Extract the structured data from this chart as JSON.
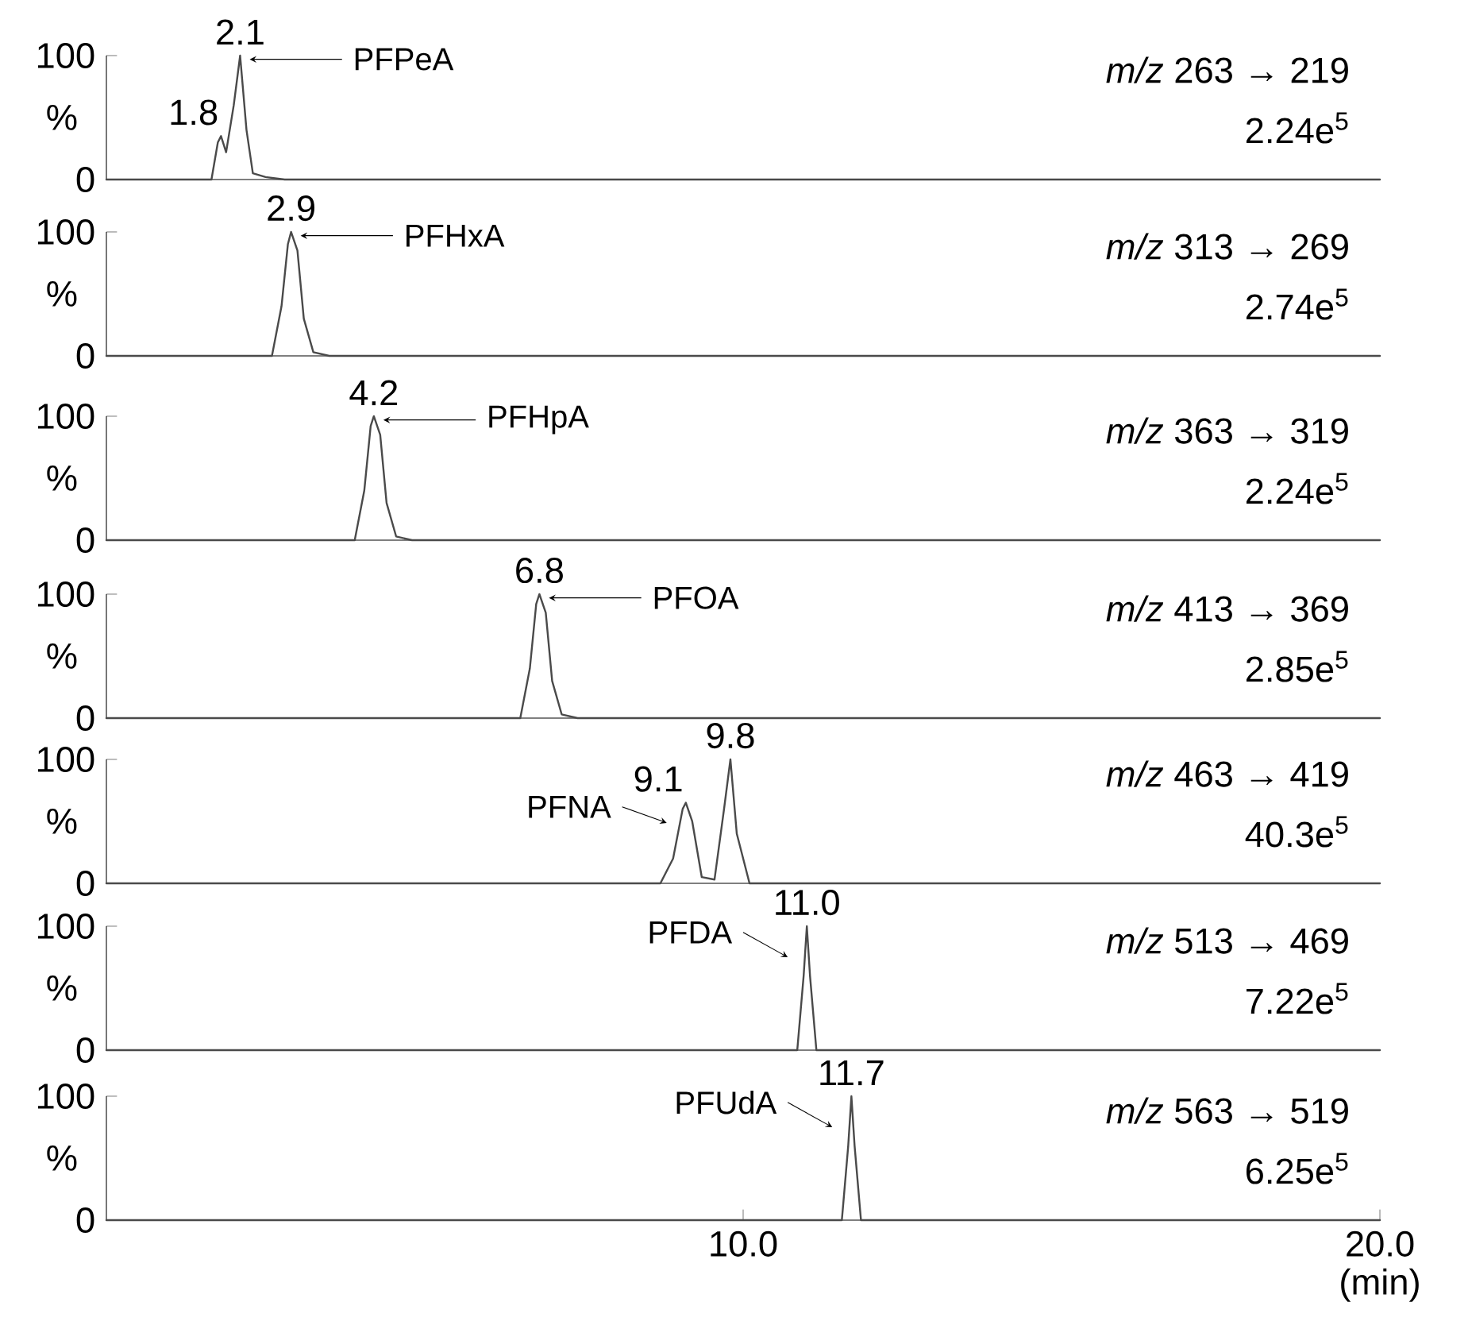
{
  "chart_data": [
    {
      "type": "line",
      "color": "#4a4a4a",
      "xlim": [
        0,
        20
      ],
      "ylim": [
        0,
        100
      ],
      "yticks": [
        0,
        100
      ],
      "ylabel": "%",
      "tick_labels": "y",
      "x": [
        0,
        1.65,
        1.75,
        1.8,
        1.88,
        2.0,
        2.1,
        2.2,
        2.3,
        2.5,
        2.8,
        20
      ],
      "values": [
        0,
        0,
        30,
        35,
        22,
        60,
        100,
        40,
        5,
        2,
        0,
        0
      ],
      "annotations": [
        "*m/z* 263 → 219",
        "2.24e$^{5}$",
        {
          "text": "1.8",
          "x": 1.8,
          "y": 35
        },
        {
          "text": "2.1",
          "x": 2.1,
          "y": 100
        },
        {
          "text": "PFPeA",
          "x": 2.1,
          "y": 100
        }
      ]
    },
    {
      "type": "line",
      "color": "#4a4a4a",
      "xlim": [
        0,
        20
      ],
      "ylim": [
        0,
        100
      ],
      "yticks": [
        0,
        100
      ],
      "ylabel": "%",
      "tick_labels": "y",
      "x": [
        0,
        2.6,
        2.75,
        2.85,
        2.9,
        3.0,
        3.1,
        3.25,
        3.5,
        20
      ],
      "values": [
        0,
        0,
        40,
        90,
        100,
        85,
        30,
        3,
        0,
        0
      ],
      "annotations": [
        "*m/z* 313 → 269",
        "2.74e$^{5}$",
        {
          "text": "2.9",
          "x": 2.9,
          "y": 100
        },
        {
          "text": "PFHxA",
          "x": 2.9,
          "y": 100
        }
      ]
    },
    {
      "type": "line",
      "color": "#4a4a4a",
      "xlim": [
        0,
        20
      ],
      "ylim": [
        0,
        100
      ],
      "yticks": [
        0,
        100
      ],
      "ylabel": "%",
      "tick_labels": "y",
      "x": [
        0,
        3.9,
        4.05,
        4.15,
        4.2,
        4.3,
        4.4,
        4.55,
        4.8,
        20
      ],
      "values": [
        0,
        0,
        40,
        92,
        100,
        85,
        30,
        3,
        0,
        0
      ],
      "annotations": [
        "*m/z* 363 → 319",
        "2.24e$^{5}$",
        {
          "text": "4.2",
          "x": 4.2,
          "y": 100
        },
        {
          "text": "PFHpA",
          "x": 4.2,
          "y": 100
        }
      ]
    },
    {
      "type": "line",
      "color": "#4a4a4a",
      "xlim": [
        0,
        20
      ],
      "ylim": [
        0,
        100
      ],
      "yticks": [
        0,
        100
      ],
      "ylabel": "%",
      "tick_labels": "y",
      "x": [
        0,
        6.5,
        6.65,
        6.75,
        6.8,
        6.9,
        7.0,
        7.15,
        7.4,
        20
      ],
      "values": [
        0,
        0,
        40,
        92,
        100,
        85,
        30,
        3,
        0,
        0
      ],
      "annotations": [
        "*m/z* 413 → 369",
        "2.85e$^{5}$",
        {
          "text": "6.8",
          "x": 6.8,
          "y": 100
        },
        {
          "text": "PFOA",
          "x": 6.8,
          "y": 100
        }
      ]
    },
    {
      "type": "line",
      "color": "#4a4a4a",
      "xlim": [
        0,
        20
      ],
      "ylim": [
        0,
        100
      ],
      "yticks": [
        0,
        100
      ],
      "ylabel": "%",
      "tick_labels": "y",
      "x": [
        0,
        8.7,
        8.9,
        9.05,
        9.1,
        9.2,
        9.35,
        9.55,
        9.7,
        9.8,
        9.9,
        10.1,
        20
      ],
      "values": [
        0,
        0,
        20,
        60,
        65,
        50,
        5,
        3,
        60,
        100,
        40,
        0,
        0
      ],
      "annotations": [
        "*m/z* 463 → 419",
        "40.3e$^{5}$",
        {
          "text": "9.1",
          "x": 9.1,
          "y": 65
        },
        {
          "text": "9.8",
          "x": 9.8,
          "y": 100
        },
        {
          "text": "PFNA",
          "x": 9.1,
          "y": 65
        }
      ]
    },
    {
      "type": "line",
      "color": "#4a4a4a",
      "xlim": [
        0,
        20
      ],
      "ylim": [
        0,
        100
      ],
      "yticks": [
        0,
        100
      ],
      "ylabel": "%",
      "tick_labels": "y",
      "x": [
        0,
        10.85,
        10.95,
        11.0,
        11.05,
        11.15,
        20
      ],
      "values": [
        0,
        0,
        60,
        100,
        60,
        0,
        0
      ],
      "annotations": [
        "*m/z* 513 → 469",
        "7.22e$^{5}$",
        {
          "text": "11.0",
          "x": 11.0,
          "y": 100
        },
        {
          "text": "PFDA",
          "x": 11.0,
          "y": 100
        }
      ]
    },
    {
      "type": "line",
      "color": "#4a4a4a",
      "xlim": [
        0,
        20
      ],
      "ylim": [
        0,
        100
      ],
      "yticks": [
        0,
        100
      ],
      "ylabel": "%",
      "xlabel": "(min)",
      "xticks": [
        {
          "value": 10,
          "label": "10.0"
        },
        {
          "value": 20,
          "label": "20.0"
        }
      ],
      "x": [
        0,
        11.55,
        11.65,
        11.7,
        11.75,
        11.85,
        20
      ],
      "values": [
        0,
        0,
        60,
        100,
        60,
        0,
        0
      ],
      "annotations": [
        "*m/z* 563 → 519",
        "6.25e$^{5}$",
        {
          "text": "11.7",
          "x": 11.7,
          "y": 100
        },
        {
          "text": "PFUdA",
          "x": 11.7,
          "y": 100
        }
      ]
    }
  ]
}
